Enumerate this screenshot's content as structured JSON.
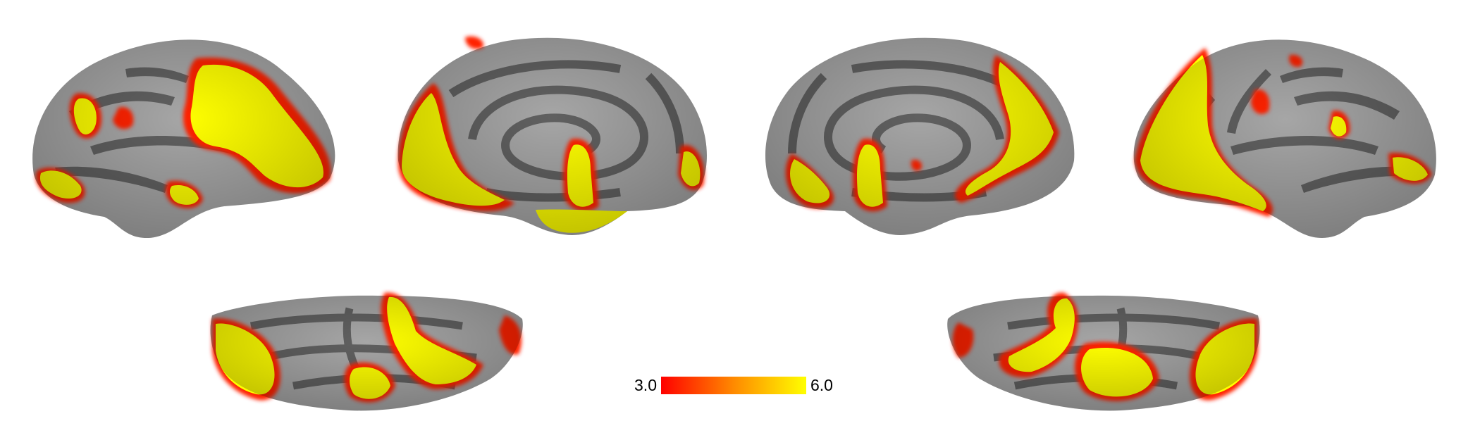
{
  "figure": {
    "views": [
      {
        "id": "lateral-left"
      },
      {
        "id": "medial-left"
      },
      {
        "id": "medial-right"
      },
      {
        "id": "lateral-right"
      },
      {
        "id": "inferior-left"
      },
      {
        "id": "inferior-right"
      }
    ],
    "surface_colors": {
      "gyri": "#a6a6a6",
      "sulci": "#606060",
      "background": "#ffffff"
    },
    "colorbar": {
      "min_label": "3.0",
      "max_label": "6.0",
      "colormap": [
        "#ff0000",
        "#ff8000",
        "#ffff00"
      ]
    }
  }
}
